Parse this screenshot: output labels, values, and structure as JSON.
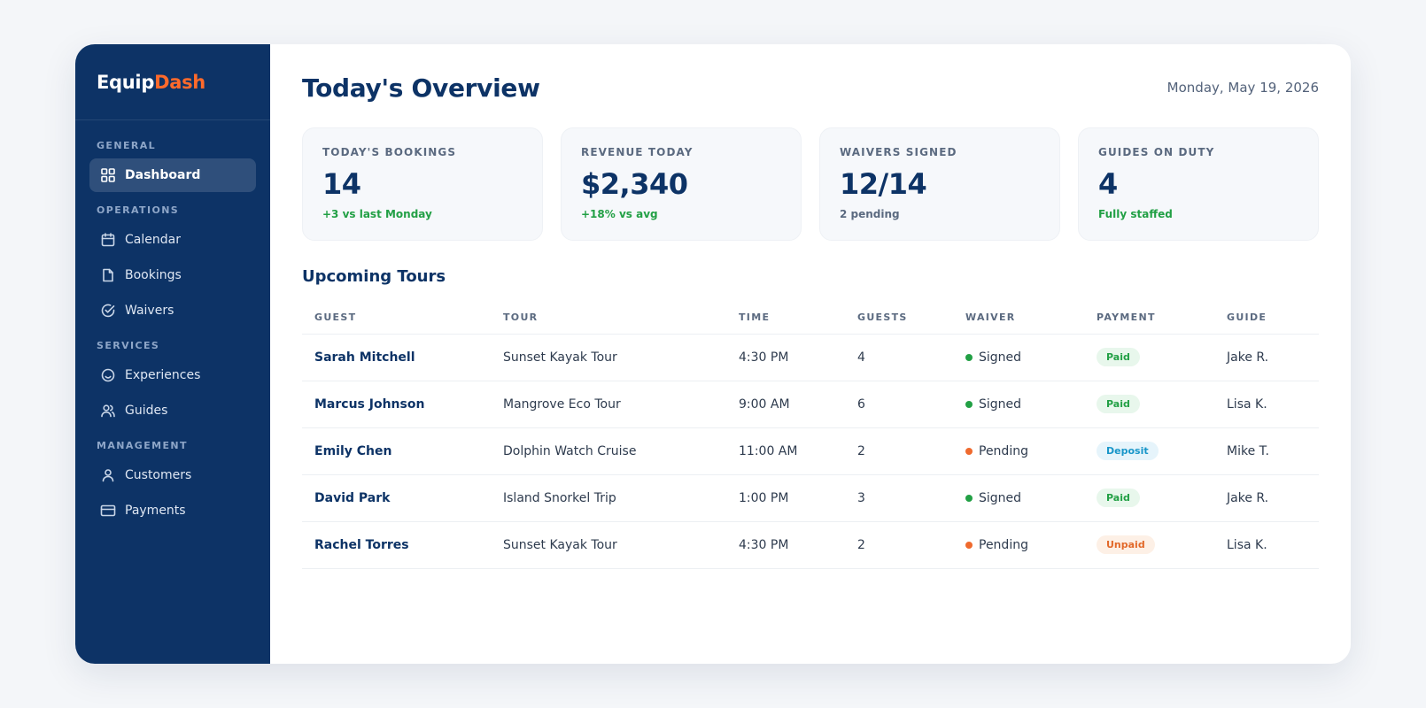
{
  "brand": {
    "part1": "Equip",
    "part2": "Dash",
    "accent_color": "#ff6a2b"
  },
  "sidebar": {
    "sections": [
      {
        "title": "GENERAL",
        "items": [
          {
            "label": "Dashboard",
            "icon": "grid-icon",
            "active": true
          }
        ]
      },
      {
        "title": "OPERATIONS",
        "items": [
          {
            "label": "Calendar",
            "icon": "calendar-icon"
          },
          {
            "label": "Bookings",
            "icon": "document-icon"
          },
          {
            "label": "Waivers",
            "icon": "check-circle-icon"
          }
        ]
      },
      {
        "title": "SERVICES",
        "items": [
          {
            "label": "Experiences",
            "icon": "smile-icon"
          },
          {
            "label": "Guides",
            "icon": "users-icon"
          }
        ]
      },
      {
        "title": "MANAGEMENT",
        "items": [
          {
            "label": "Customers",
            "icon": "user-icon"
          },
          {
            "label": "Payments",
            "icon": "credit-card-icon"
          }
        ]
      }
    ]
  },
  "header": {
    "title": "Today's Overview",
    "date": "Monday, May 19, 2026"
  },
  "stats": [
    {
      "label": "TODAY'S BOOKINGS",
      "value": "14",
      "note": "+3 vs last Monday",
      "note_color": "green"
    },
    {
      "label": "REVENUE TODAY",
      "value": "$2,340",
      "note": "+18% vs avg",
      "note_color": "green"
    },
    {
      "label": "WAIVERS SIGNED",
      "value": "12/14",
      "note": "2 pending",
      "note_color": "gray"
    },
    {
      "label": "GUIDES ON DUTY",
      "value": "4",
      "note": "Fully staffed",
      "note_color": "green"
    }
  ],
  "tours": {
    "title": "Upcoming Tours",
    "columns": [
      "GUEST",
      "TOUR",
      "TIME",
      "GUESTS",
      "WAIVER",
      "PAYMENT",
      "GUIDE"
    ],
    "rows": [
      {
        "guest": "Sarah Mitchell",
        "tour": "Sunset Kayak Tour",
        "time": "4:30 PM",
        "guests": "4",
        "waiver": "Signed",
        "waiver_color": "#22a045",
        "payment": "Paid",
        "payment_type": "paid",
        "guide": "Jake R."
      },
      {
        "guest": "Marcus Johnson",
        "tour": "Mangrove Eco Tour",
        "time": "9:00 AM",
        "guests": "6",
        "waiver": "Signed",
        "waiver_color": "#22a045",
        "payment": "Paid",
        "payment_type": "paid",
        "guide": "Lisa K."
      },
      {
        "guest": "Emily Chen",
        "tour": "Dolphin Watch Cruise",
        "time": "11:00 AM",
        "guests": "2",
        "waiver": "Pending",
        "waiver_color": "#ef6a2e",
        "payment": "Deposit",
        "payment_type": "deposit",
        "guide": "Mike T."
      },
      {
        "guest": "David Park",
        "tour": "Island Snorkel Trip",
        "time": "1:00 PM",
        "guests": "3",
        "waiver": "Signed",
        "waiver_color": "#22a045",
        "payment": "Paid",
        "payment_type": "paid",
        "guide": "Jake R."
      },
      {
        "guest": "Rachel Torres",
        "tour": "Sunset Kayak Tour",
        "time": "4:30 PM",
        "guests": "2",
        "waiver": "Pending",
        "waiver_color": "#ef6a2e",
        "payment": "Unpaid",
        "payment_type": "unpaid",
        "guide": "Lisa K."
      }
    ]
  }
}
